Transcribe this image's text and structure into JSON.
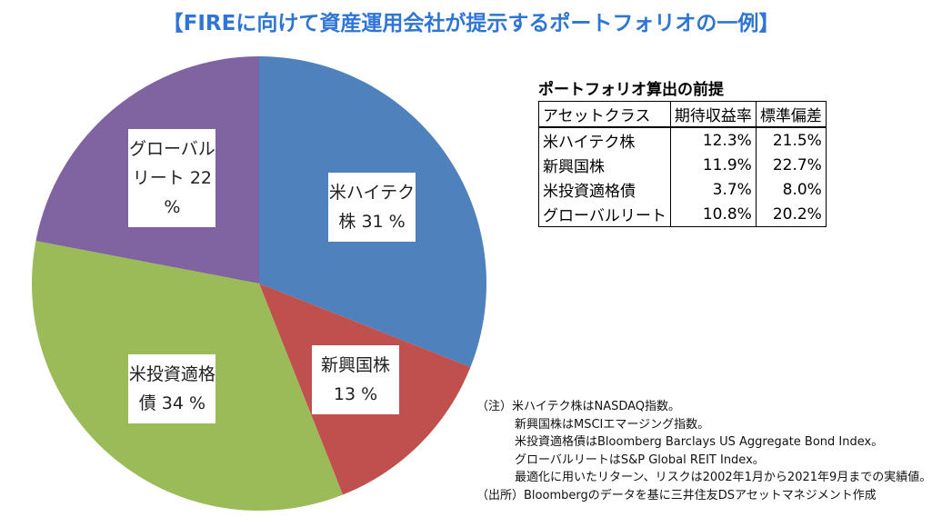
{
  "chart_data": {
    "type": "pie",
    "title": "【FIREに向けて資産運用会社が提示するポートフォリオの一例】",
    "categories": [
      "米ハイテク株",
      "新興国株",
      "米投資適格債",
      "グローバルリート"
    ],
    "values": [
      31,
      13,
      34,
      22
    ],
    "value_labels": [
      "31 %",
      "13 %",
      "34 %",
      "22 %"
    ],
    "colors": [
      "#4f81bd",
      "#c0504d",
      "#9bbb59",
      "#8064a2"
    ]
  },
  "table": {
    "title": "ポートフォリオ算出の前提",
    "header": [
      "アセットクラス",
      "期待収益率",
      "標準偏差"
    ],
    "rows": [
      [
        "米ハイテク株",
        "12.3%",
        "21.5%"
      ],
      [
        "新興国株",
        "11.9%",
        "22.7%"
      ],
      [
        "米投資適格債",
        "3.7%",
        "8.0%"
      ],
      [
        "グローバルリート",
        "10.8%",
        "20.2%"
      ]
    ]
  },
  "notes": {
    "lines": [
      "（注）米ハイテク株はNASDAQ指数。",
      "新興国株はMSCIエマージング指数。",
      "米投資適格債はBloomberg Barclays US Aggregate Bond Index。",
      "グローバルリートはS&P Global REIT Index。",
      "最適化に用いたリターン、リスクは2002年1月から2021年9月までの実績値。",
      "（出所）Bloombergのデータを基に三井住友DSアセットマネジメント作成"
    ]
  }
}
